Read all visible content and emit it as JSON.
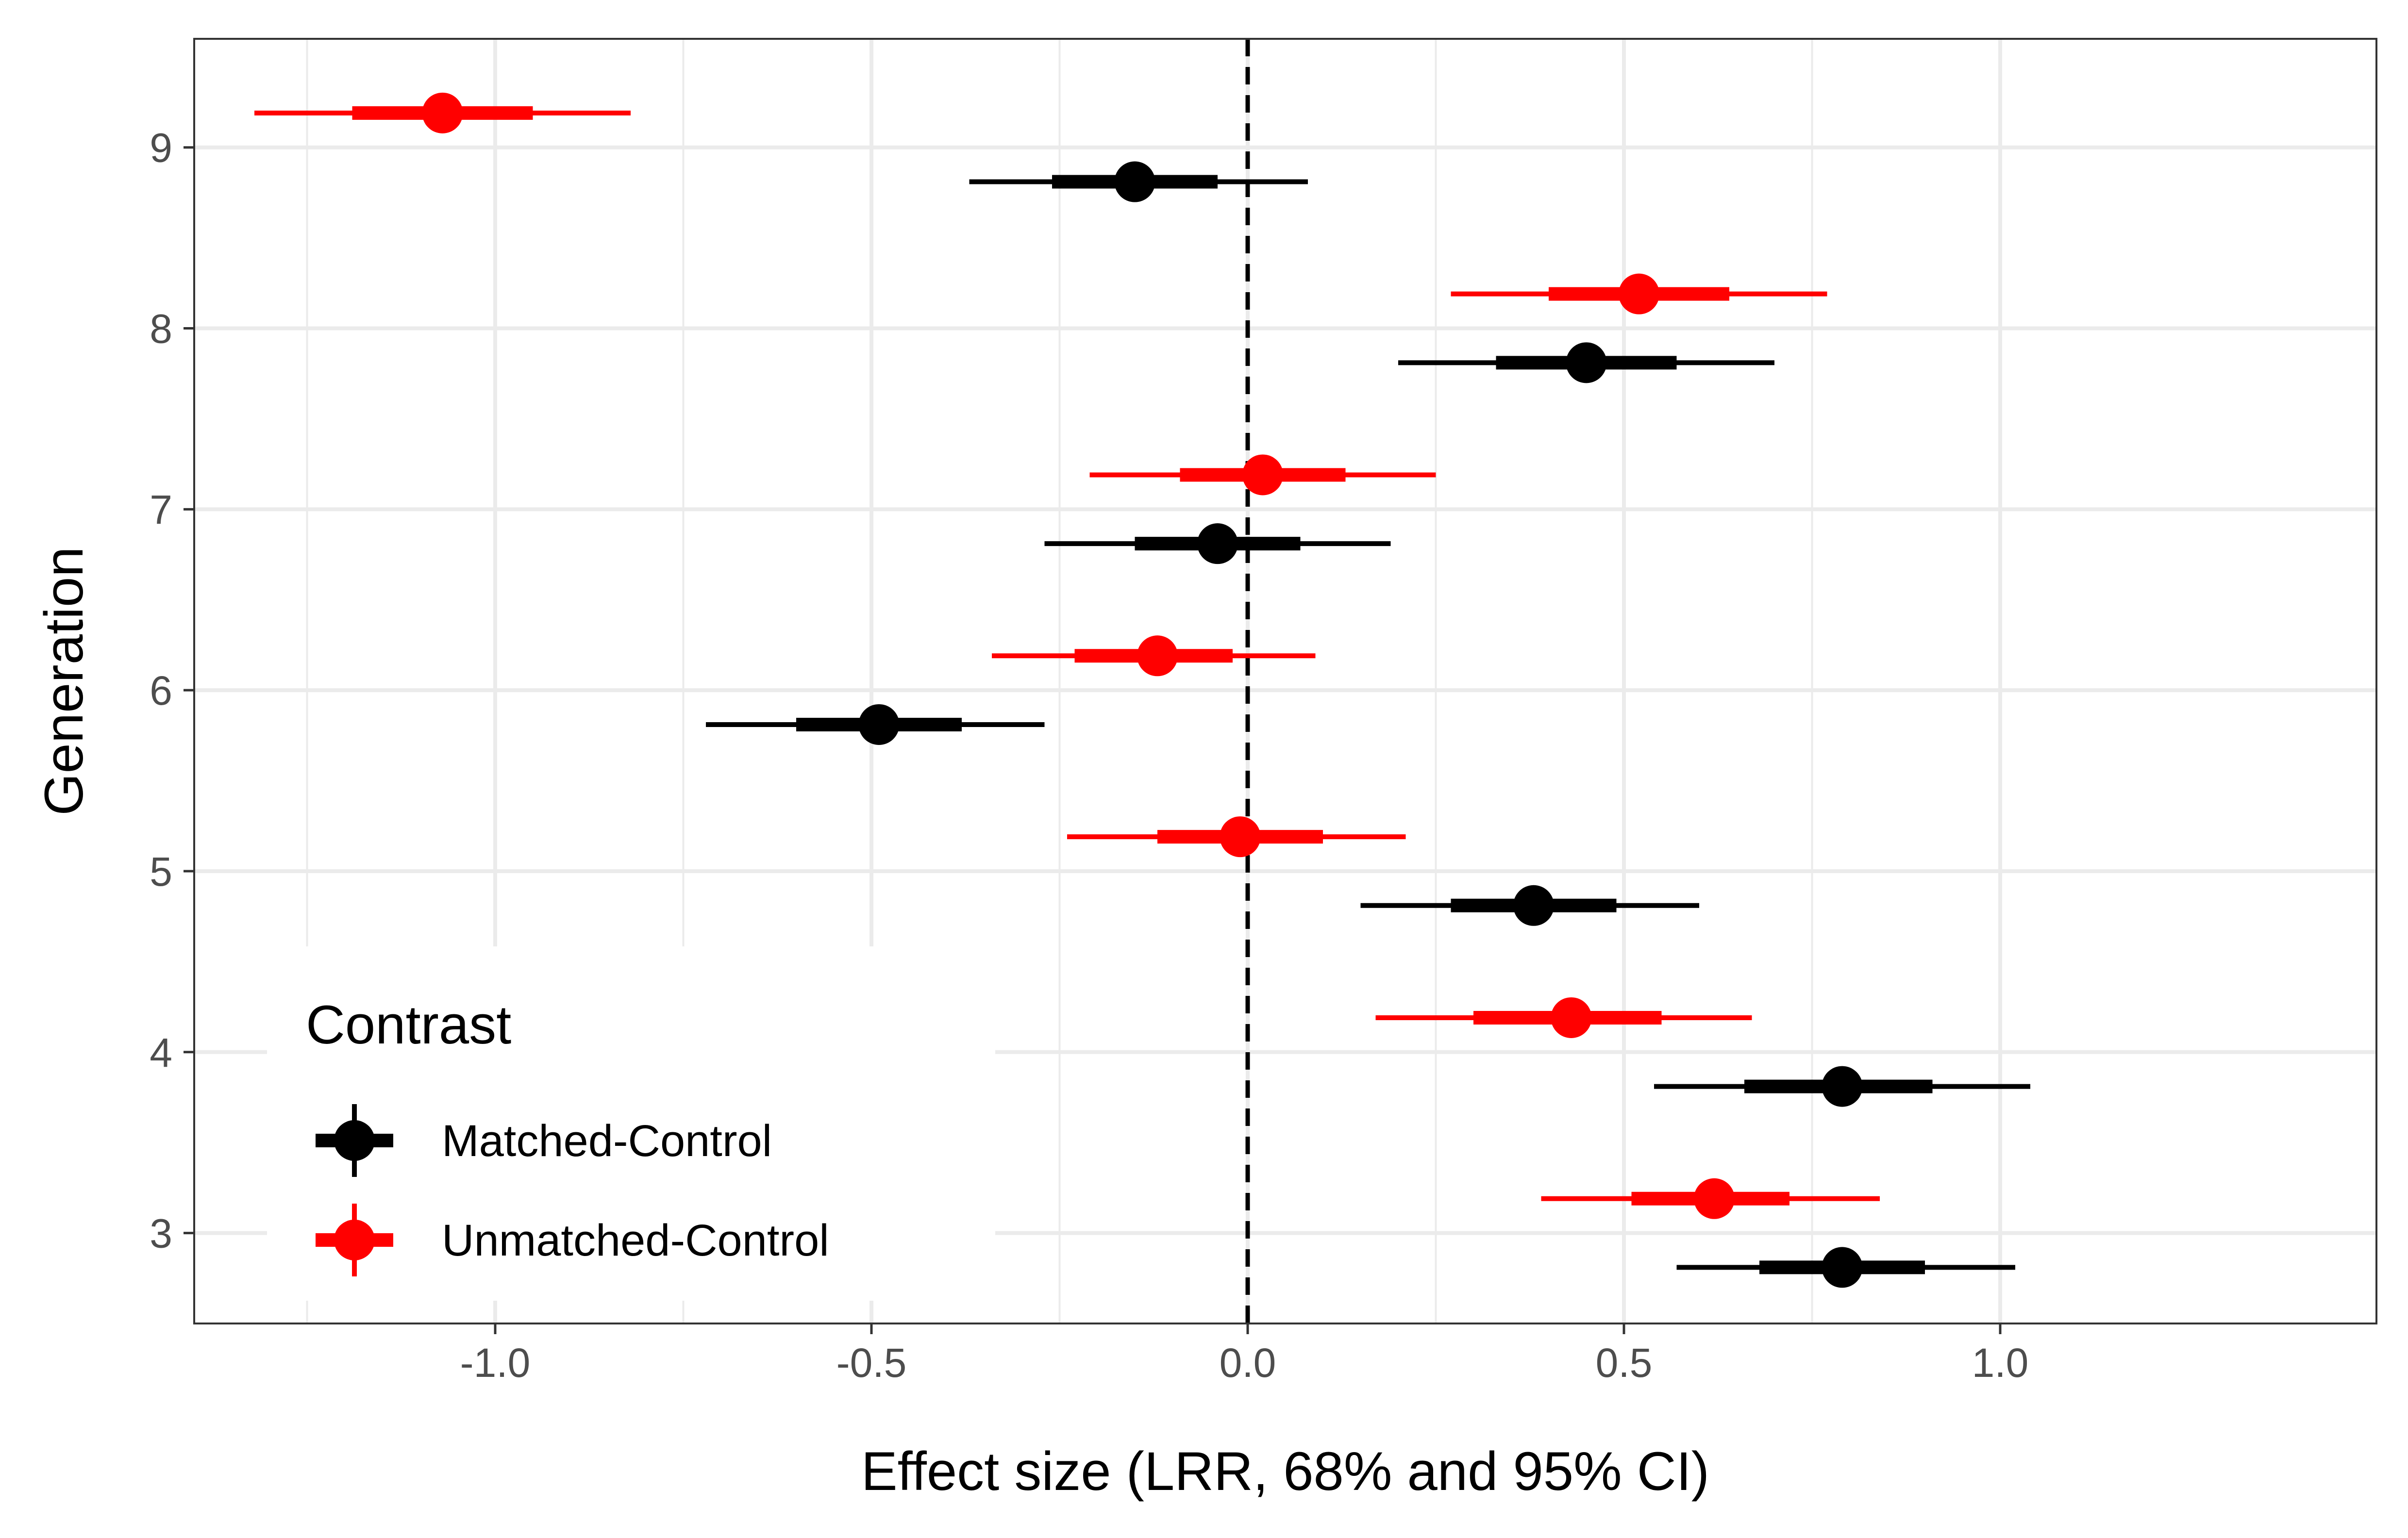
{
  "chart_data": {
    "type": "forest",
    "xlabel": "Effect size (LRR, 68% and 95% CI)",
    "ylabel": "Generation",
    "xlim": [
      -1.4,
      1.5
    ],
    "ylim": [
      2.5,
      9.6
    ],
    "x_ticks": [
      -1.0,
      -0.5,
      0.0,
      0.5,
      1.0
    ],
    "x_tick_labels": [
      "-1.0",
      "-0.5",
      "0.0",
      "0.5",
      "1.0"
    ],
    "y_ticks": [
      3,
      4,
      5,
      6,
      7,
      8,
      9
    ],
    "y_tick_labels": [
      "3",
      "4",
      "5",
      "6",
      "7",
      "8",
      "9"
    ],
    "grid": true,
    "reference_line": {
      "x": 0,
      "style": "dashed"
    },
    "legend": {
      "title": "Contrast",
      "position": "bottom-left"
    },
    "series": [
      {
        "name": "Matched-Control",
        "color": "#000000",
        "points": [
          {
            "generation": 9,
            "estimate": -0.15,
            "ci68": [
              -0.26,
              -0.04
            ],
            "ci95": [
              -0.37,
              0.08
            ]
          },
          {
            "generation": 8,
            "estimate": 0.45,
            "ci68": [
              0.33,
              0.57
            ],
            "ci95": [
              0.2,
              0.7
            ]
          },
          {
            "generation": 7,
            "estimate": -0.04,
            "ci68": [
              -0.15,
              0.07
            ],
            "ci95": [
              -0.27,
              0.19
            ]
          },
          {
            "generation": 6,
            "estimate": -0.49,
            "ci68": [
              -0.6,
              -0.38
            ],
            "ci95": [
              -0.72,
              -0.27
            ]
          },
          {
            "generation": 5,
            "estimate": 0.38,
            "ci68": [
              0.27,
              0.49
            ],
            "ci95": [
              0.15,
              0.6
            ]
          },
          {
            "generation": 4,
            "estimate": 0.79,
            "ci68": [
              0.66,
              0.91
            ],
            "ci95": [
              0.54,
              1.04
            ]
          },
          {
            "generation": 3,
            "estimate": 0.79,
            "ci68": [
              0.68,
              0.9
            ],
            "ci95": [
              0.57,
              1.02
            ]
          }
        ]
      },
      {
        "name": "Unmatched-Control",
        "color": "#ff0000",
        "points": [
          {
            "generation": 9,
            "estimate": -1.07,
            "ci68": [
              -1.19,
              -0.95
            ],
            "ci95": [
              -1.32,
              -0.82
            ]
          },
          {
            "generation": 8,
            "estimate": 0.52,
            "ci68": [
              0.4,
              0.64
            ],
            "ci95": [
              0.27,
              0.77
            ]
          },
          {
            "generation": 7,
            "estimate": 0.02,
            "ci68": [
              -0.09,
              0.13
            ],
            "ci95": [
              -0.21,
              0.25
            ]
          },
          {
            "generation": 6,
            "estimate": -0.12,
            "ci68": [
              -0.23,
              -0.02
            ],
            "ci95": [
              -0.34,
              0.09
            ]
          },
          {
            "generation": 5,
            "estimate": -0.01,
            "ci68": [
              -0.12,
              0.1
            ],
            "ci95": [
              -0.24,
              0.21
            ]
          },
          {
            "generation": 4,
            "estimate": 0.43,
            "ci68": [
              0.3,
              0.55
            ],
            "ci95": [
              0.17,
              0.67
            ]
          },
          {
            "generation": 3,
            "estimate": 0.62,
            "ci68": [
              0.51,
              0.72
            ],
            "ci95": [
              0.39,
              0.84
            ]
          }
        ]
      }
    ]
  }
}
